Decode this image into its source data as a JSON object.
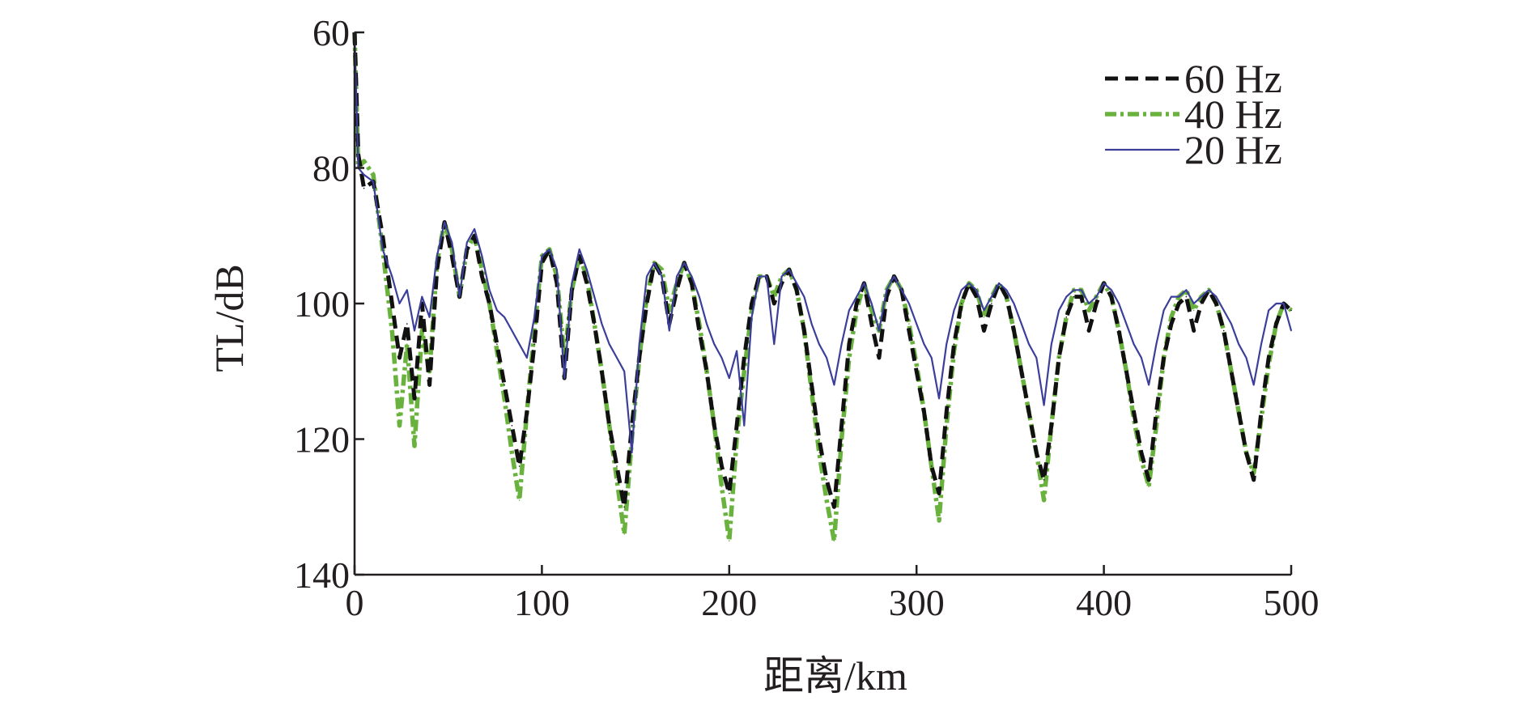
{
  "chart_data": {
    "type": "line",
    "title": "",
    "xlabel": "距离/km",
    "ylabel": "TL/dB",
    "xlim": [
      0,
      500
    ],
    "ylim": [
      60,
      140
    ],
    "y_inverted": true,
    "grid": false,
    "legend_position": "top-right",
    "x_ticks": [
      "0",
      "100",
      "200",
      "300",
      "400",
      "500"
    ],
    "y_ticks": [
      "60",
      "80",
      "100",
      "120",
      "140"
    ],
    "x_tick_values": [
      0,
      100,
      200,
      300,
      400,
      500
    ],
    "y_tick_values": [
      60,
      80,
      100,
      120,
      140
    ],
    "series": [
      {
        "name": "60 Hz",
        "color": "#111111",
        "style": "dashed",
        "x": [
          0,
          2,
          5,
          10,
          15,
          20,
          24,
          28,
          32,
          36,
          40,
          44,
          48,
          52,
          56,
          60,
          64,
          68,
          72,
          76,
          80,
          84,
          88,
          92,
          96,
          100,
          104,
          108,
          112,
          116,
          120,
          124,
          128,
          132,
          136,
          140,
          144,
          148,
          152,
          156,
          160,
          164,
          168,
          172,
          176,
          180,
          184,
          188,
          192,
          196,
          200,
          204,
          208,
          212,
          216,
          220,
          224,
          228,
          232,
          236,
          240,
          244,
          248,
          252,
          256,
          260,
          264,
          268,
          272,
          276,
          280,
          284,
          288,
          292,
          296,
          300,
          304,
          308,
          312,
          316,
          320,
          324,
          328,
          332,
          336,
          340,
          344,
          348,
          352,
          356,
          360,
          364,
          368,
          372,
          376,
          380,
          384,
          388,
          392,
          396,
          400,
          404,
          408,
          412,
          416,
          420,
          424,
          428,
          432,
          436,
          440,
          444,
          448,
          452,
          456,
          460,
          464,
          468,
          472,
          476,
          480,
          484,
          488,
          492,
          496,
          500
        ],
        "y": [
          60,
          78,
          83,
          82,
          90,
          100,
          108,
          103,
          114,
          100,
          112,
          95,
          88,
          93,
          99,
          92,
          90,
          96,
          100,
          106,
          112,
          118,
          124,
          116,
          106,
          94,
          92,
          97,
          111,
          98,
          93,
          97,
          103,
          110,
          118,
          124,
          130,
          118,
          108,
          100,
          94,
          96,
          103,
          98,
          94,
          97,
          104,
          110,
          118,
          124,
          128,
          118,
          108,
          100,
          96,
          96,
          100,
          97,
          95,
          98,
          104,
          112,
          120,
          126,
          130,
          118,
          106,
          100,
          97,
          103,
          108,
          99,
          96,
          98,
          104,
          110,
          116,
          124,
          128,
          116,
          106,
          100,
          97,
          99,
          104,
          100,
          97,
          99,
          104,
          110,
          116,
          122,
          126,
          118,
          108,
          102,
          99,
          99,
          104,
          100,
          97,
          99,
          104,
          110,
          116,
          122,
          126,
          116,
          108,
          103,
          100,
          99,
          104,
          100,
          98,
          100,
          104,
          110,
          116,
          122,
          126,
          116,
          108,
          103,
          100,
          101
        ]
      },
      {
        "name": "40 Hz",
        "color": "#6ab23e",
        "style": "dashdot",
        "x": [
          0,
          2,
          5,
          10,
          15,
          20,
          24,
          28,
          32,
          36,
          40,
          44,
          48,
          52,
          56,
          60,
          64,
          68,
          72,
          76,
          80,
          84,
          88,
          92,
          96,
          100,
          104,
          108,
          112,
          116,
          120,
          124,
          128,
          132,
          136,
          140,
          144,
          148,
          152,
          156,
          160,
          164,
          168,
          172,
          176,
          180,
          184,
          188,
          192,
          196,
          200,
          204,
          208,
          212,
          216,
          220,
          224,
          228,
          232,
          236,
          240,
          244,
          248,
          252,
          256,
          260,
          264,
          268,
          272,
          276,
          280,
          284,
          288,
          292,
          296,
          300,
          304,
          308,
          312,
          316,
          320,
          324,
          328,
          332,
          336,
          340,
          344,
          348,
          352,
          356,
          360,
          364,
          368,
          372,
          376,
          380,
          384,
          388,
          392,
          396,
          400,
          404,
          408,
          412,
          416,
          420,
          424,
          428,
          432,
          436,
          440,
          444,
          448,
          452,
          456,
          460,
          464,
          468,
          472,
          476,
          480,
          484,
          488,
          492,
          496,
          500
        ],
        "y": [
          60,
          80,
          79,
          81,
          92,
          104,
          118,
          106,
          121,
          104,
          110,
          94,
          88,
          92,
          99,
          92,
          90,
          95,
          100,
          107,
          114,
          122,
          129,
          116,
          104,
          93,
          92,
          96,
          108,
          98,
          93,
          96,
          103,
          110,
          118,
          126,
          134,
          120,
          108,
          99,
          94,
          95,
          101,
          97,
          94,
          97,
          103,
          110,
          118,
          127,
          135,
          120,
          110,
          101,
          96,
          96,
          99,
          96,
          95,
          98,
          104,
          113,
          122,
          129,
          135,
          120,
          108,
          101,
          97,
          101,
          104,
          98,
          96,
          98,
          103,
          109,
          116,
          124,
          132,
          118,
          107,
          100,
          97,
          98,
          102,
          99,
          97,
          99,
          104,
          110,
          116,
          122,
          129,
          118,
          108,
          102,
          98,
          98,
          101,
          99,
          97,
          99,
          104,
          110,
          117,
          123,
          127,
          118,
          108,
          102,
          99,
          98,
          101,
          99,
          98,
          100,
          104,
          110,
          116,
          122,
          125,
          117,
          109,
          103,
          100,
          101
        ]
      },
      {
        "name": "20 Hz",
        "color": "#3b3f9a",
        "style": "solid",
        "x": [
          0,
          2,
          5,
          10,
          15,
          20,
          24,
          28,
          32,
          36,
          40,
          44,
          48,
          52,
          56,
          60,
          64,
          68,
          72,
          76,
          80,
          84,
          88,
          92,
          96,
          100,
          104,
          108,
          112,
          116,
          120,
          124,
          128,
          132,
          136,
          140,
          144,
          148,
          152,
          156,
          160,
          164,
          168,
          172,
          176,
          180,
          184,
          188,
          192,
          196,
          200,
          204,
          208,
          212,
          216,
          220,
          224,
          228,
          232,
          236,
          240,
          244,
          248,
          252,
          256,
          260,
          264,
          268,
          272,
          276,
          280,
          284,
          288,
          292,
          296,
          300,
          304,
          308,
          312,
          316,
          320,
          324,
          328,
          332,
          336,
          340,
          344,
          348,
          352,
          356,
          360,
          364,
          368,
          372,
          376,
          380,
          384,
          388,
          392,
          396,
          400,
          404,
          408,
          412,
          416,
          420,
          424,
          428,
          432,
          436,
          440,
          444,
          448,
          452,
          456,
          460,
          464,
          468,
          472,
          476,
          480,
          484,
          488,
          492,
          496,
          500
        ],
        "y": [
          60,
          80,
          81,
          82,
          92,
          96,
          100,
          98,
          104,
          99,
          102,
          93,
          88,
          91,
          99,
          91,
          89,
          93,
          98,
          101,
          102,
          104,
          106,
          108,
          102,
          93,
          92,
          95,
          111,
          97,
          92,
          95,
          99,
          103,
          106,
          108,
          110,
          122,
          106,
          96,
          94,
          96,
          104,
          96,
          94,
          96,
          99,
          103,
          106,
          108,
          111,
          107,
          118,
          102,
          96,
          96,
          106,
          96,
          95,
          97,
          99,
          103,
          106,
          108,
          112,
          106,
          101,
          99,
          97,
          100,
          104,
          98,
          96,
          98,
          100,
          103,
          106,
          108,
          114,
          106,
          101,
          98,
          97,
          98,
          101,
          99,
          97,
          98,
          100,
          103,
          106,
          108,
          115,
          106,
          101,
          99,
          98,
          98,
          100,
          99,
          97,
          98,
          100,
          103,
          106,
          108,
          112,
          106,
          101,
          99,
          99,
          98,
          100,
          99,
          98,
          99,
          101,
          103,
          106,
          108,
          112,
          106,
          101,
          100,
          100,
          104
        ]
      }
    ]
  }
}
